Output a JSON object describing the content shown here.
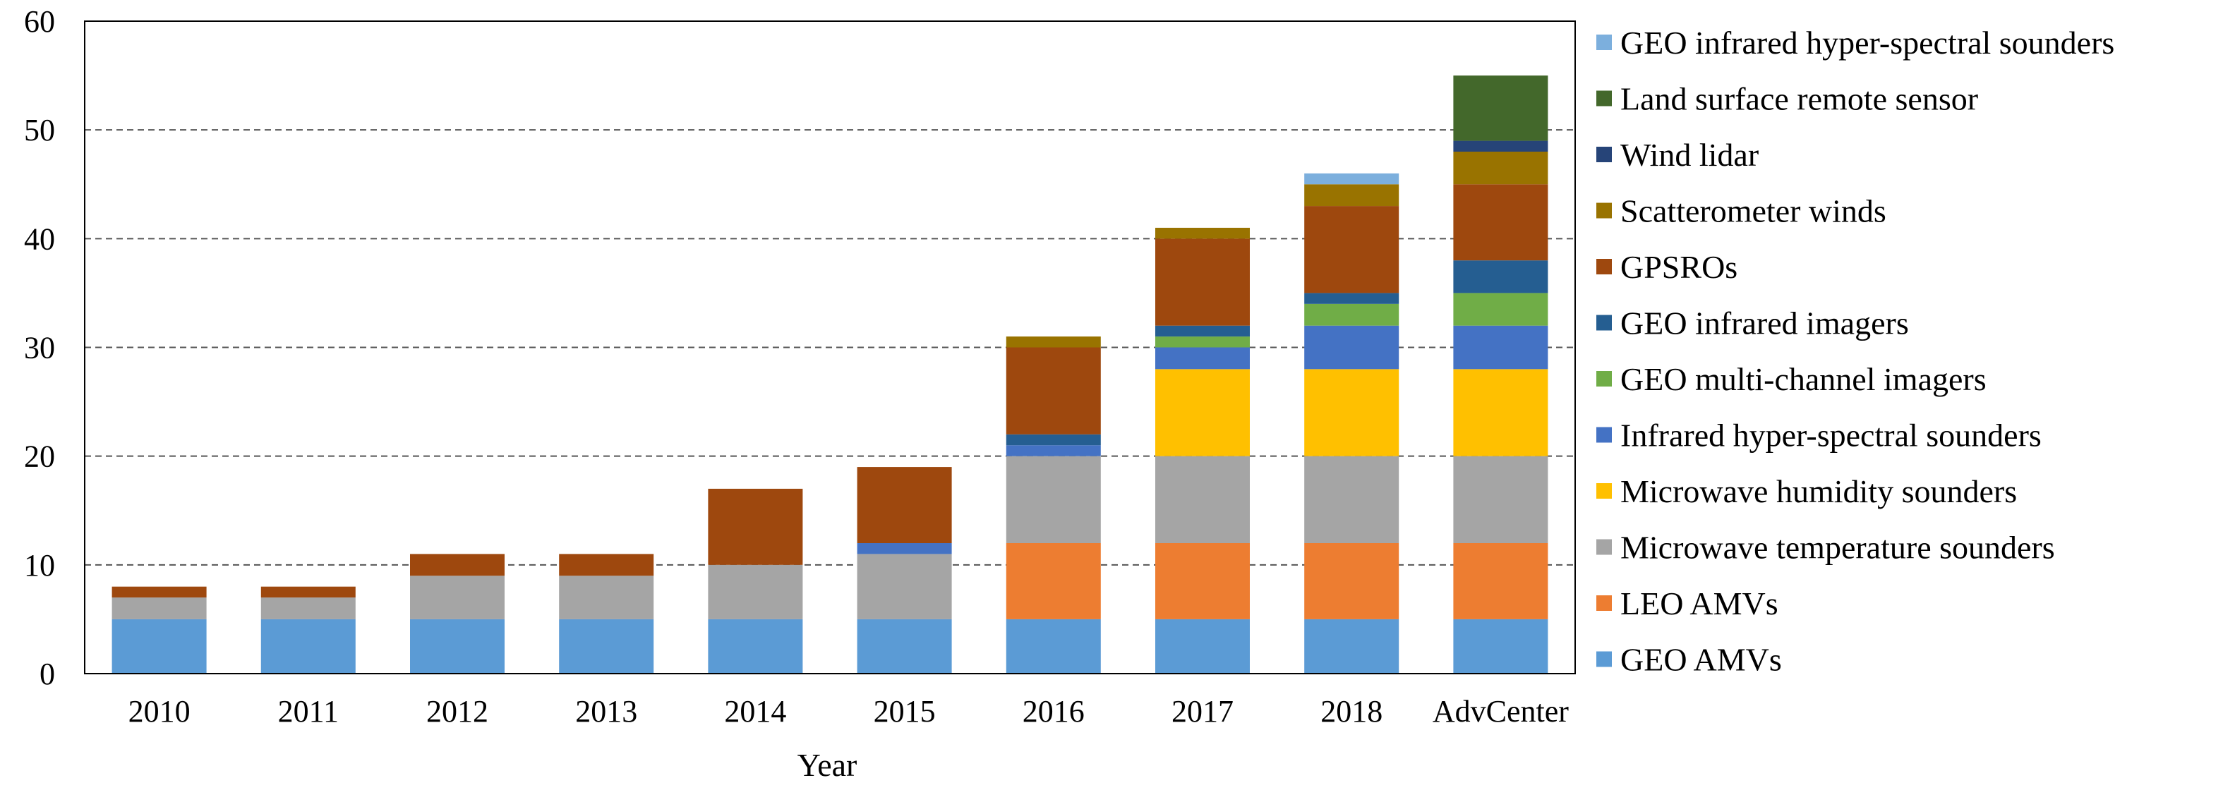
{
  "chart_data": {
    "type": "bar",
    "stacked": true,
    "title": "",
    "xlabel": "Year",
    "ylabel": "",
    "ylim": [
      0,
      60
    ],
    "yticks": [
      0,
      10,
      20,
      30,
      40,
      50,
      60
    ],
    "grid": "horizontal dashed",
    "legend_position": "right",
    "categories": [
      "2010",
      "2011",
      "2012",
      "2013",
      "2014",
      "2015",
      "2016",
      "2017",
      "2018",
      "AdvCenter"
    ],
    "series": [
      {
        "name": "GEO AMVs",
        "color": "#5B9BD5",
        "values": [
          5,
          5,
          5,
          5,
          5,
          5,
          5,
          5,
          5,
          5
        ]
      },
      {
        "name": "LEO AMVs",
        "color": "#ED7D31",
        "values": [
          0,
          0,
          0,
          0,
          0,
          0,
          7,
          7,
          7,
          7
        ]
      },
      {
        "name": "Microwave temperature sounders",
        "color": "#A5A5A5",
        "values": [
          2,
          2,
          4,
          4,
          5,
          6,
          8,
          8,
          8,
          8
        ]
      },
      {
        "name": "Microwave humidity sounders",
        "color": "#FFC000",
        "values": [
          0,
          0,
          0,
          0,
          0,
          0,
          0,
          8,
          8,
          8
        ]
      },
      {
        "name": "Infrared hyper-spectral sounders",
        "color": "#4472C4",
        "values": [
          0,
          0,
          0,
          0,
          0,
          1,
          1,
          2,
          4,
          4
        ]
      },
      {
        "name": "GEO multi-channel imagers",
        "color": "#70AD47",
        "values": [
          0,
          0,
          0,
          0,
          0,
          0,
          0,
          1,
          2,
          3
        ]
      },
      {
        "name": "GEO infrared imagers",
        "color": "#255E91",
        "values": [
          0,
          0,
          0,
          0,
          0,
          0,
          1,
          1,
          1,
          3
        ]
      },
      {
        "name": "GPSROs",
        "color": "#9E480E",
        "values": [
          1,
          1,
          2,
          2,
          7,
          7,
          8,
          8,
          8,
          7
        ]
      },
      {
        "name": "Scatterometer winds",
        "color": "#997300",
        "values": [
          0,
          0,
          0,
          0,
          0,
          0,
          1,
          1,
          2,
          3
        ]
      },
      {
        "name": "Wind lidar",
        "color": "#264478",
        "values": [
          0,
          0,
          0,
          0,
          0,
          0,
          0,
          0,
          0,
          1
        ]
      },
      {
        "name": "Land surface remote sensor",
        "color": "#43682B",
        "values": [
          0,
          0,
          0,
          0,
          0,
          0,
          0,
          0,
          0,
          6
        ]
      },
      {
        "name": "GEO infrared hyper-spectral sounders",
        "color": "#7CAFDD",
        "values": [
          0,
          0,
          0,
          0,
          0,
          0,
          0,
          0,
          1,
          0
        ]
      }
    ]
  }
}
